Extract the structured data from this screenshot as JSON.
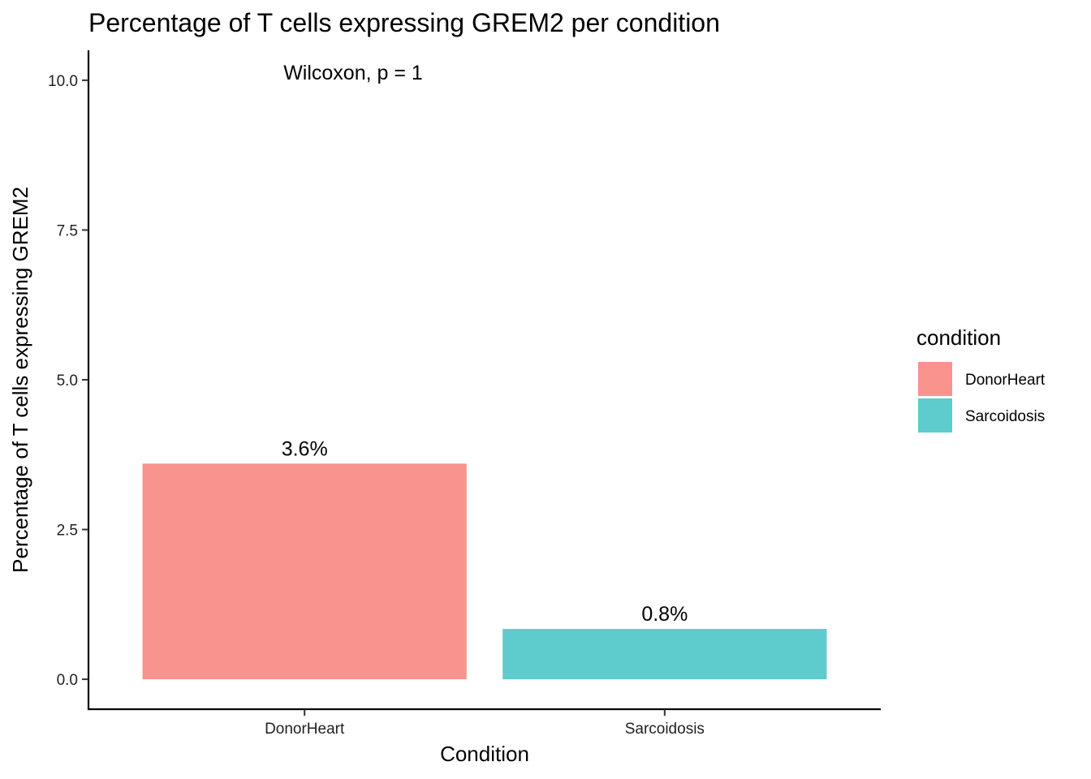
{
  "chart_data": {
    "type": "bar",
    "title": "Percentage of T cells expressing GREM2 per condition",
    "xlabel": "Condition",
    "ylabel": "Percentage of T cells expressing GREM2",
    "categories": [
      "DonorHeart",
      "Sarcoidosis"
    ],
    "values": [
      3.6,
      0.84
    ],
    "data_labels": [
      "3.6%",
      "0.8%"
    ],
    "colors": [
      "#F8938E",
      "#5ECBCC"
    ],
    "ylim": [
      -0.5,
      10.5
    ],
    "yticks": [
      0.0,
      2.5,
      5.0,
      7.5,
      10.0
    ],
    "ytick_labels": [
      "0.0",
      "2.5",
      "5.0",
      "7.5",
      "10.0"
    ],
    "annotation": "Wilcoxon, p = 1",
    "grid": false,
    "legend": {
      "title": "condition",
      "position": "right",
      "entries": [
        "DonorHeart",
        "Sarcoidosis"
      ]
    }
  }
}
